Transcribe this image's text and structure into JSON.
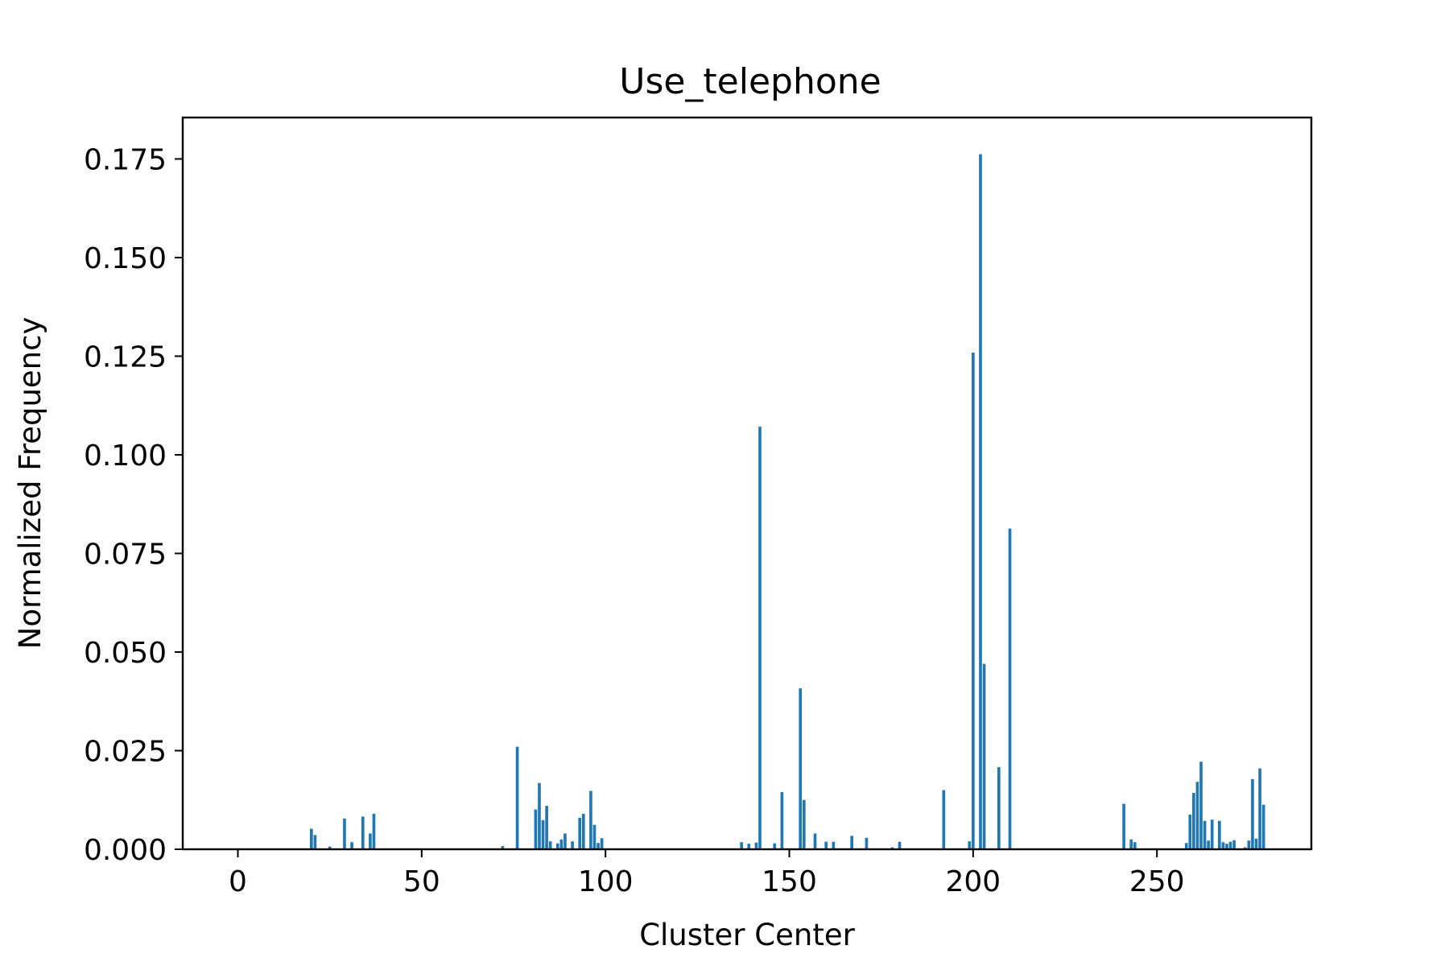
{
  "chart_data": {
    "type": "bar",
    "title": "Use_telephone",
    "xlabel": "Cluster Center",
    "ylabel": "Normalized Frequency",
    "xlim": [
      -15,
      292
    ],
    "ylim": [
      0,
      0.1855
    ],
    "xticks": [
      0,
      50,
      100,
      150,
      200,
      250
    ],
    "xtick_labels": [
      "0",
      "50",
      "100",
      "150",
      "200",
      "250"
    ],
    "yticks": [
      0,
      0.025,
      0.05,
      0.075,
      0.1,
      0.125,
      0.15,
      0.175
    ],
    "ytick_labels": [
      "0.000",
      "0.025",
      "0.050",
      "0.075",
      "0.100",
      "0.125",
      "0.150",
      "0.175"
    ],
    "grid": false,
    "bar_color": "#1f77b4",
    "x": [
      20,
      21,
      25,
      29,
      31,
      34,
      36,
      37,
      72,
      76,
      81,
      82,
      83,
      84,
      85,
      87,
      88,
      89,
      91,
      93,
      94,
      96,
      97,
      98,
      99,
      137,
      139,
      141,
      142,
      146,
      148,
      153,
      154,
      157,
      160,
      162,
      167,
      171,
      178,
      180,
      192,
      199,
      200,
      202,
      203,
      207,
      210,
      241,
      243,
      244,
      258,
      259,
      260,
      261,
      262,
      263,
      264,
      265,
      267,
      268,
      269,
      270,
      271,
      274,
      275,
      276,
      277,
      278,
      279
    ],
    "values": [
      0.0052,
      0.0036,
      0.0007,
      0.0078,
      0.0018,
      0.0083,
      0.004,
      0.009,
      0.0008,
      0.026,
      0.0101,
      0.0168,
      0.0074,
      0.011,
      0.002,
      0.0015,
      0.0025,
      0.004,
      0.002,
      0.008,
      0.009,
      0.0148,
      0.0062,
      0.0016,
      0.0028,
      0.0018,
      0.0014,
      0.0017,
      0.1071,
      0.0015,
      0.0145,
      0.0408,
      0.0125,
      0.004,
      0.0019,
      0.0019,
      0.0034,
      0.0029,
      0.0005,
      0.0019,
      0.015,
      0.002,
      0.1259,
      0.1762,
      0.047,
      0.0208,
      0.0813,
      0.0115,
      0.0025,
      0.0018,
      0.0016,
      0.0088,
      0.0143,
      0.0171,
      0.0222,
      0.0072,
      0.0022,
      0.0075,
      0.0072,
      0.0018,
      0.0014,
      0.0019,
      0.0023,
      0.0005,
      0.0022,
      0.0178,
      0.0027,
      0.0205,
      0.0113
    ]
  }
}
